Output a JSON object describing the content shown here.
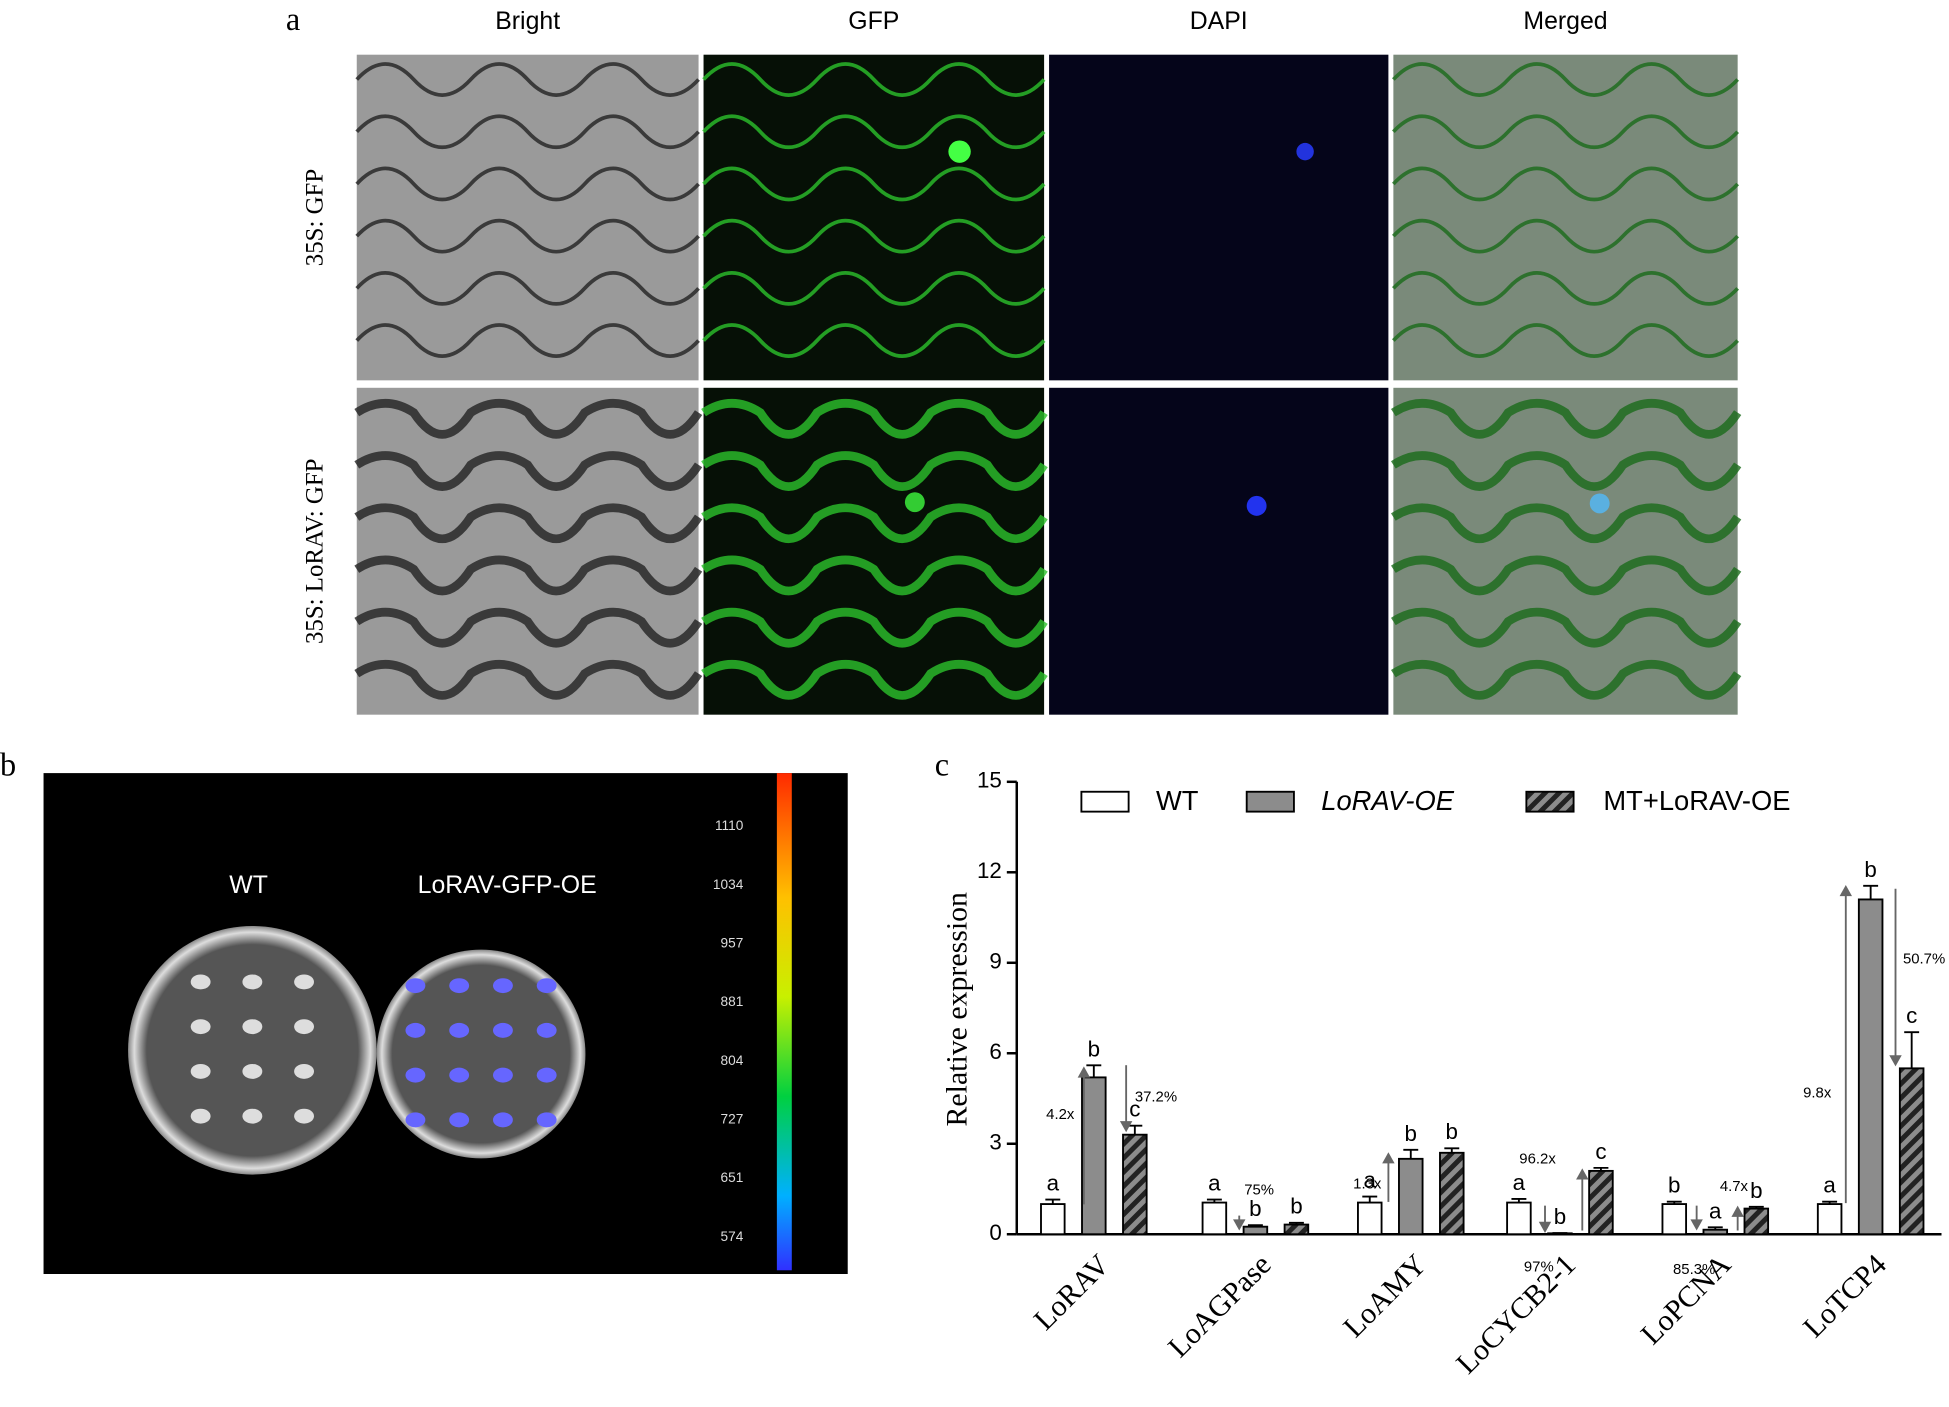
{
  "panel_a": {
    "letter": "a",
    "columns": [
      "Bright",
      "GFP",
      "DAPI",
      "Merged"
    ],
    "rows": [
      "35S: GFP",
      "35S: LoRAV: GFP"
    ]
  },
  "panel_b": {
    "letter": "b",
    "plates": [
      "WT",
      "LoRAV-GFP-OE"
    ],
    "colorbar_ticks": [
      1110,
      1034,
      957,
      881,
      804,
      727,
      651,
      574
    ]
  },
  "chart_data": {
    "type": "bar",
    "letter": "c",
    "ylabel": "Relative expression",
    "categories": [
      "LoRAV",
      "LoAGPase",
      "LoAMY",
      "LoCYCB2-1",
      "LoPCNA",
      "LoTCP4"
    ],
    "series": [
      {
        "name": "WT",
        "color": "#ffffff",
        "values": [
          1.0,
          1.05,
          1.05,
          1.05,
          1.0,
          1.0
        ],
        "errors": [
          0.15,
          0.1,
          0.2,
          0.12,
          0.08,
          0.08
        ],
        "letters": [
          "a",
          "a",
          "a",
          "a",
          "b",
          "a"
        ]
      },
      {
        "name": "LoRAV-OE",
        "color": "#8c8c8c",
        "values": [
          5.2,
          0.25,
          2.5,
          0.03,
          0.15,
          11.1
        ],
        "errors": [
          0.4,
          0.05,
          0.3,
          0.01,
          0.08,
          0.45
        ],
        "letters": [
          "b",
          "b",
          "b",
          "b",
          "a",
          "b"
        ]
      },
      {
        "name": "MT+LoRAV-OE",
        "color": "#8c8c8c",
        "hatch": true,
        "values": [
          3.3,
          0.32,
          2.7,
          2.1,
          0.85,
          5.5
        ],
        "errors": [
          0.3,
          0.06,
          0.15,
          0.1,
          0.06,
          1.2
        ],
        "letters": [
          "c",
          "b",
          "b",
          "c",
          "b",
          "c"
        ]
      }
    ],
    "annotations": [
      "4.2x",
      "37.2%",
      "75%",
      "1.3x",
      "97%",
      "96.2x",
      "85.3%",
      "4.7x",
      "9.8x",
      "50.7%"
    ],
    "ylim": [
      0,
      15
    ],
    "yticks": [
      0,
      3,
      6,
      9,
      12,
      15
    ]
  }
}
